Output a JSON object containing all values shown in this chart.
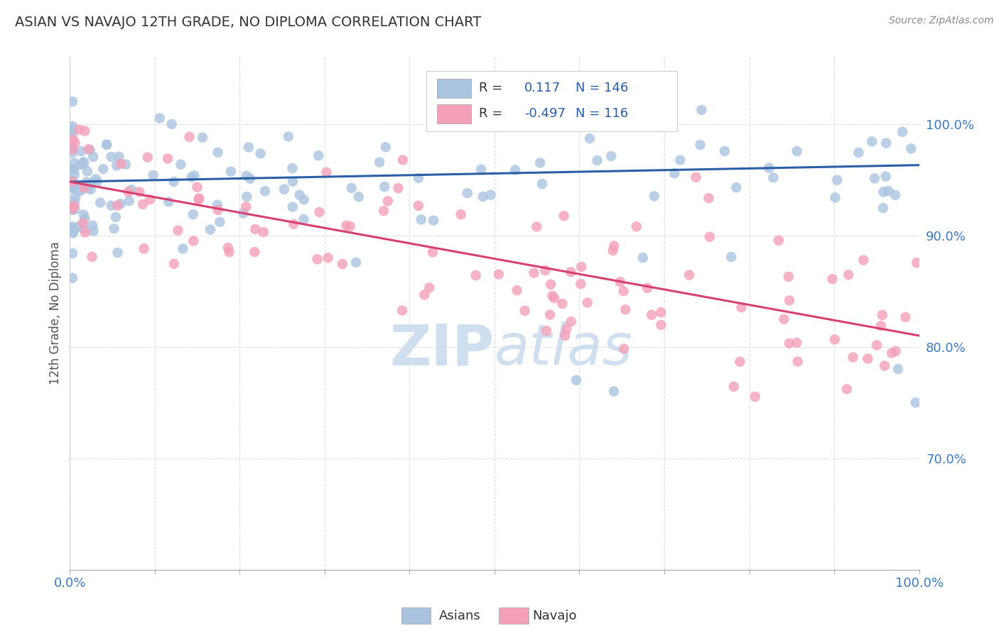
{
  "title": "ASIAN VS NAVAJO 12TH GRADE, NO DIPLOMA CORRELATION CHART",
  "source": "Source: ZipAtlas.com",
  "ylabel": "12th Grade, No Diploma",
  "legend_asian_label": "Asians",
  "legend_navajo_label": "Navajo",
  "asian_R_val": "0.117",
  "asian_N_val": "N = 146",
  "navajo_R_val": "-0.497",
  "navajo_N_val": "N = 116",
  "asian_color": "#aac4e0",
  "navajo_color": "#f4a0b8",
  "asian_line_color": "#2a5fa8",
  "navajo_line_color": "#d84070",
  "watermark_zip": "ZIP",
  "watermark_atlas": "atlas",
  "watermark_color": "#d0dff0",
  "background_color": "#ffffff",
  "grid_color": "#dddddd",
  "ytick_labels": [
    "100.0%",
    "90.0%",
    "80.0%",
    "70.0%"
  ],
  "ytick_positions": [
    1.0,
    0.9,
    0.8,
    0.7
  ],
  "xlim": [
    0.0,
    1.0
  ],
  "ylim": [
    0.6,
    1.06
  ],
  "asian_line_x0": 0.0,
  "asian_line_x1": 1.0,
  "asian_line_y0": 0.948,
  "asian_line_y1": 0.963,
  "navajo_line_x0": 0.0,
  "navajo_line_x1": 1.0,
  "navajo_line_y0": 0.948,
  "navajo_line_y1": 0.81
}
